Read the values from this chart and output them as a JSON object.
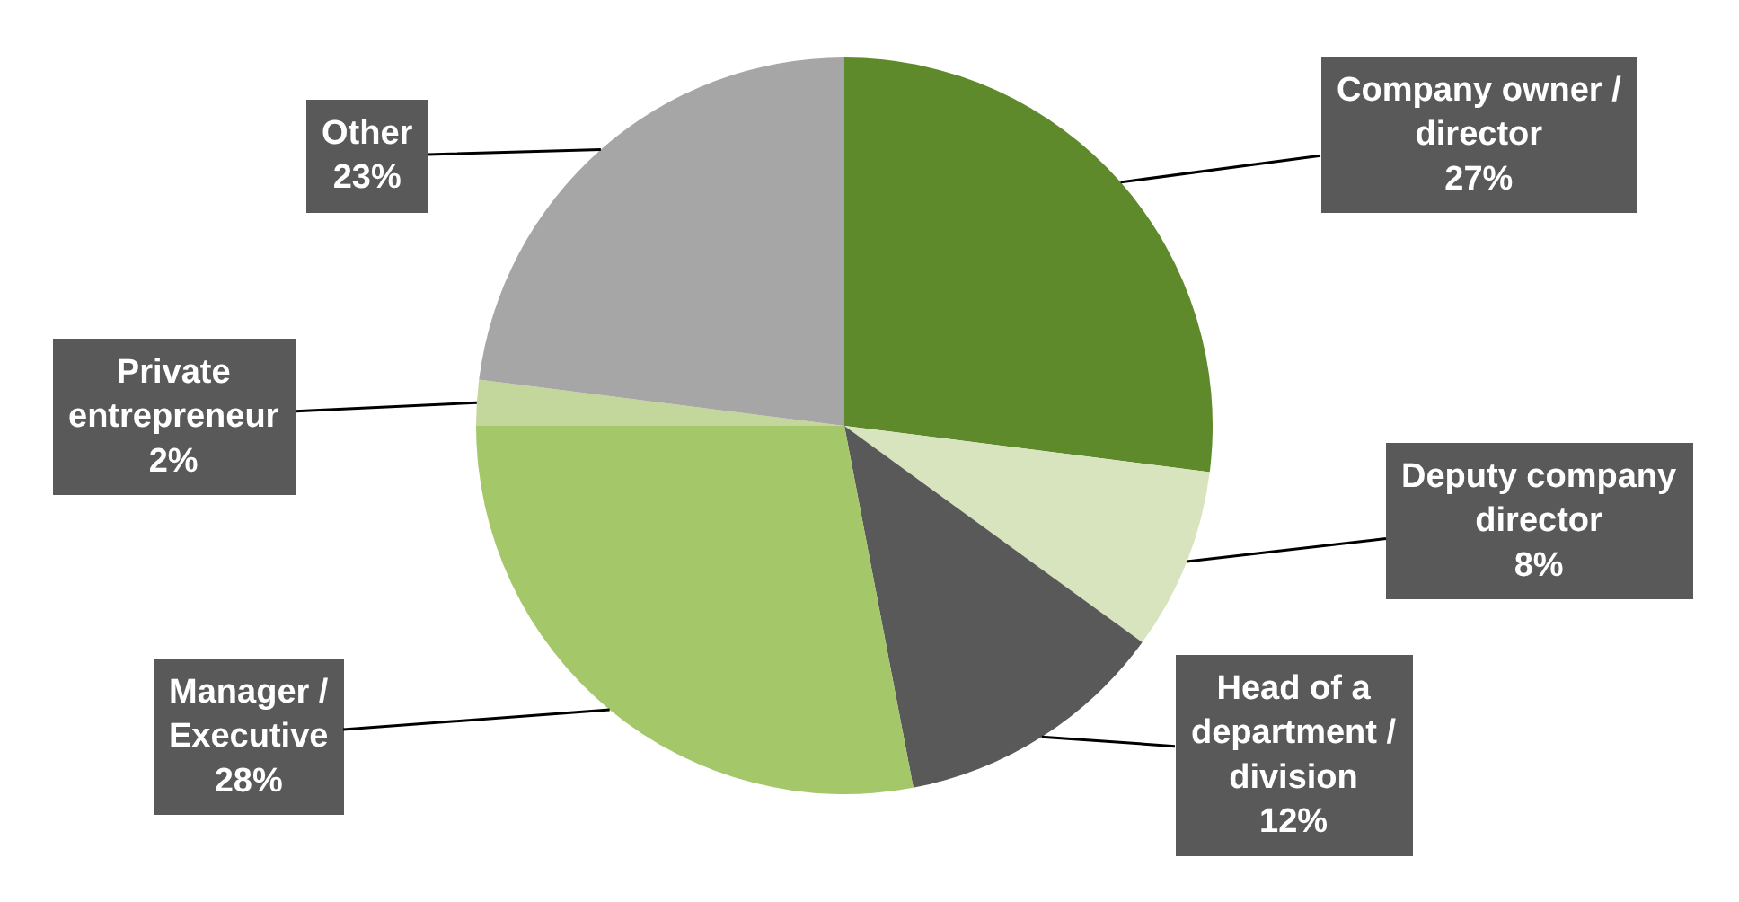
{
  "chart_data": {
    "type": "pie",
    "legend": false,
    "categories": [
      "Company owner / director",
      "Deputy company director",
      "Head of a department / division",
      "Manager / Executive",
      "Private entrepreneur",
      "Other"
    ],
    "values": [
      27,
      8,
      12,
      28,
      2,
      23
    ],
    "value_labels": [
      "27%",
      "8%",
      "12%",
      "28%",
      "2%",
      "23%"
    ],
    "colors": [
      "#5f8a2c",
      "#d7e4bd",
      "#595959",
      "#a4c76a",
      "#c3d69b",
      "#a6a6a6"
    ]
  }
}
